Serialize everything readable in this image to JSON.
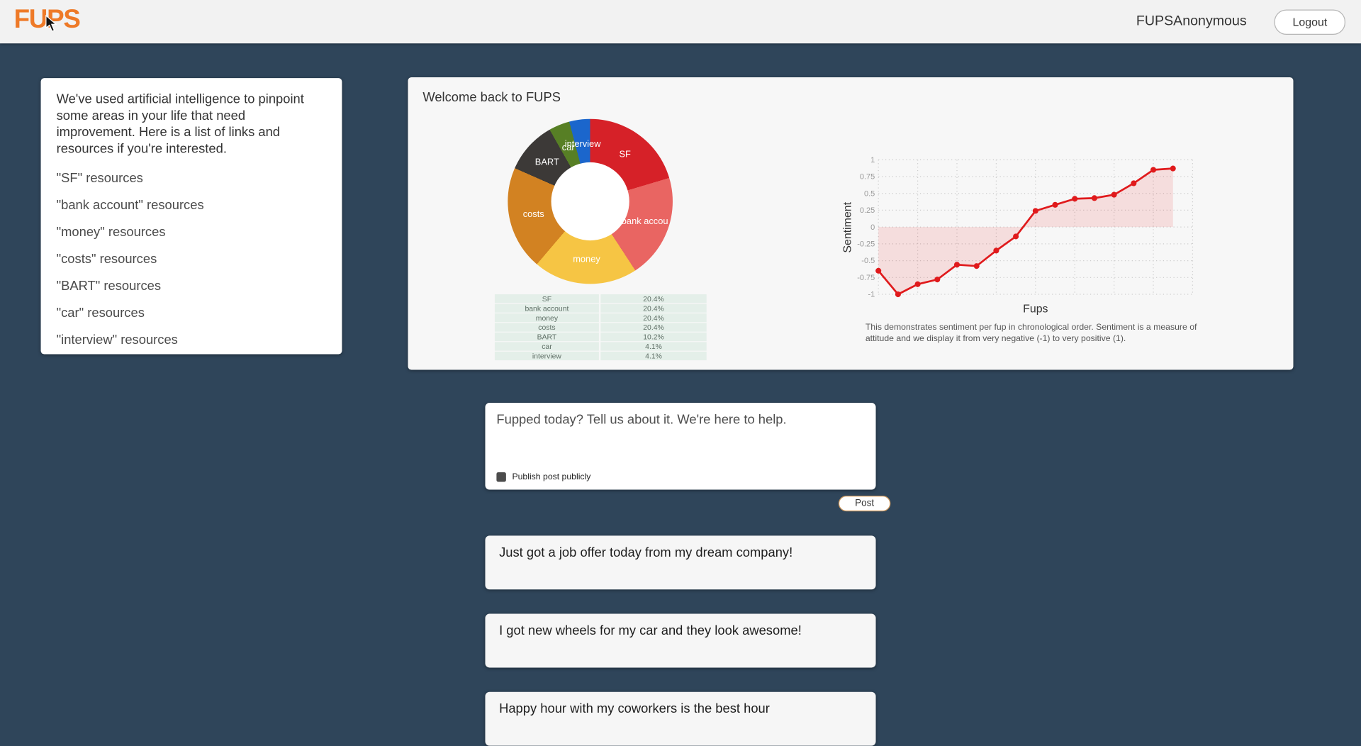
{
  "header": {
    "logo": "FUPS",
    "username": "FUPSAnonymous",
    "logout_label": "Logout"
  },
  "resources_card": {
    "intro": "We've used artificial intelligence to pinpoint some areas in your life that need improvement. Here is a list of links and resources if you're interested.",
    "links": [
      "\"SF\" resources",
      "\"bank account\" resources",
      "\"money\" resources",
      "\"costs\" resources",
      "\"BART\" resources",
      "\"car\" resources",
      "\"interview\" resources"
    ]
  },
  "dashboard": {
    "title": "Welcome back to FUPS",
    "caption": "This demonstrates sentiment per fup in chronological order. Sentiment is a measure of attitude and we display it from very negative (-1) to very positive (1)."
  },
  "chart_data": [
    {
      "type": "pie",
      "title": "",
      "labels": [
        "SF",
        "bank account",
        "money",
        "costs",
        "BART",
        "car",
        "interview"
      ],
      "values": [
        20.4,
        20.4,
        20.4,
        20.4,
        10.2,
        4.1,
        4.1
      ],
      "slice_labels": [
        "SF",
        "bank accou",
        "money",
        "costs",
        "BART",
        "car",
        "interview"
      ],
      "colors": [
        "#d62128",
        "#e96562",
        "#f6c544",
        "#d28222",
        "#3c3937",
        "#577f25",
        "#1b66cc"
      ],
      "hole": 0.47,
      "unit": "%"
    },
    {
      "type": "line",
      "xlabel": "Fups",
      "ylabel": "Sentiment",
      "ylim": [
        -1,
        1
      ],
      "yticks": [
        1,
        0.75,
        0.5,
        0.25,
        0,
        -0.25,
        -0.5,
        -0.75,
        -1
      ],
      "series": [
        {
          "name": "sentiment",
          "values": [
            -0.65,
            -1,
            -0.85,
            -0.78,
            -0.56,
            -0.58,
            -0.35,
            -0.14,
            0.24,
            0.33,
            0.42,
            0.43,
            0.48,
            0.65,
            0.85,
            0.87
          ]
        }
      ],
      "line_color": "#e01a1c",
      "fill": "tozeroy",
      "fill_color": "rgba(230,30,30,0.12)",
      "grid": "dotted",
      "legend_position": "none"
    }
  ],
  "composer": {
    "placeholder": "Fupped today? Tell us about it. We're here to help.",
    "checkbox_label": "Publish post publicly",
    "post_label": "Post"
  },
  "posts": [
    "Just got a job offer today from my dream company!",
    "I got new wheels for my car and they look awesome!",
    "Happy hour with my coworkers is the best hour"
  ]
}
